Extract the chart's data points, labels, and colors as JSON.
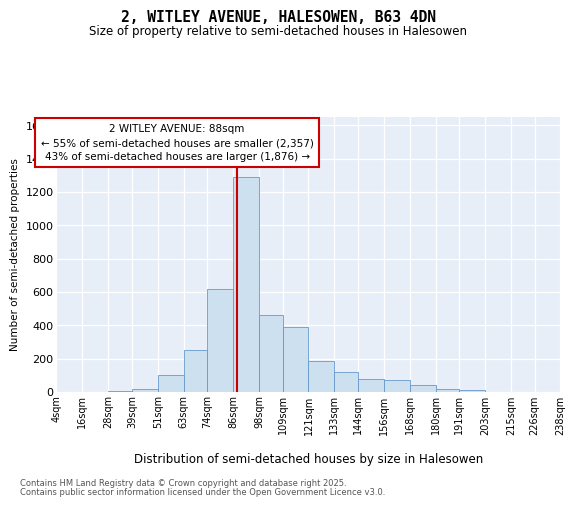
{
  "title": "2, WITLEY AVENUE, HALESOWEN, B63 4DN",
  "subtitle": "Size of property relative to semi-detached houses in Halesowen",
  "xlabel": "Distribution of semi-detached houses by size in Halesowen",
  "ylabel": "Number of semi-detached properties",
  "property_size": 88,
  "annotation_title": "2 WITLEY AVENUE: 88sqm",
  "annotation_line1": "← 55% of semi-detached houses are smaller (2,357)",
  "annotation_line2": "43% of semi-detached houses are larger (1,876) →",
  "footer_line1": "Contains HM Land Registry data © Crown copyright and database right 2025.",
  "footer_line2": "Contains public sector information licensed under the Open Government Licence v3.0.",
  "bar_color": "#cce0f0",
  "bar_edge_color": "#6699cc",
  "vline_color": "#cc0000",
  "background_color": "#e8eef8",
  "bin_starts": [
    4,
    16,
    28,
    39,
    51,
    63,
    74,
    86,
    98,
    109,
    121,
    133,
    144,
    156,
    168,
    180,
    191,
    203,
    215,
    226
  ],
  "bin_ends": [
    16,
    28,
    39,
    51,
    63,
    74,
    86,
    98,
    109,
    121,
    133,
    144,
    156,
    168,
    180,
    191,
    203,
    215,
    226,
    238
  ],
  "bar_heights": [
    1,
    3,
    5,
    20,
    100,
    250,
    620,
    1290,
    460,
    390,
    185,
    120,
    80,
    70,
    40,
    20,
    10,
    3,
    2,
    1
  ],
  "xlabels": [
    "4sqm",
    "16sqm",
    "28sqm",
    "39sqm",
    "51sqm",
    "63sqm",
    "74sqm",
    "86sqm",
    "98sqm",
    "109sqm",
    "121sqm",
    "133sqm",
    "144sqm",
    "156sqm",
    "168sqm",
    "180sqm",
    "191sqm",
    "203sqm",
    "215sqm",
    "226sqm",
    "238sqm"
  ],
  "ylim": [
    0,
    1650
  ],
  "yticks": [
    0,
    200,
    400,
    600,
    800,
    1000,
    1200,
    1400,
    1600
  ]
}
